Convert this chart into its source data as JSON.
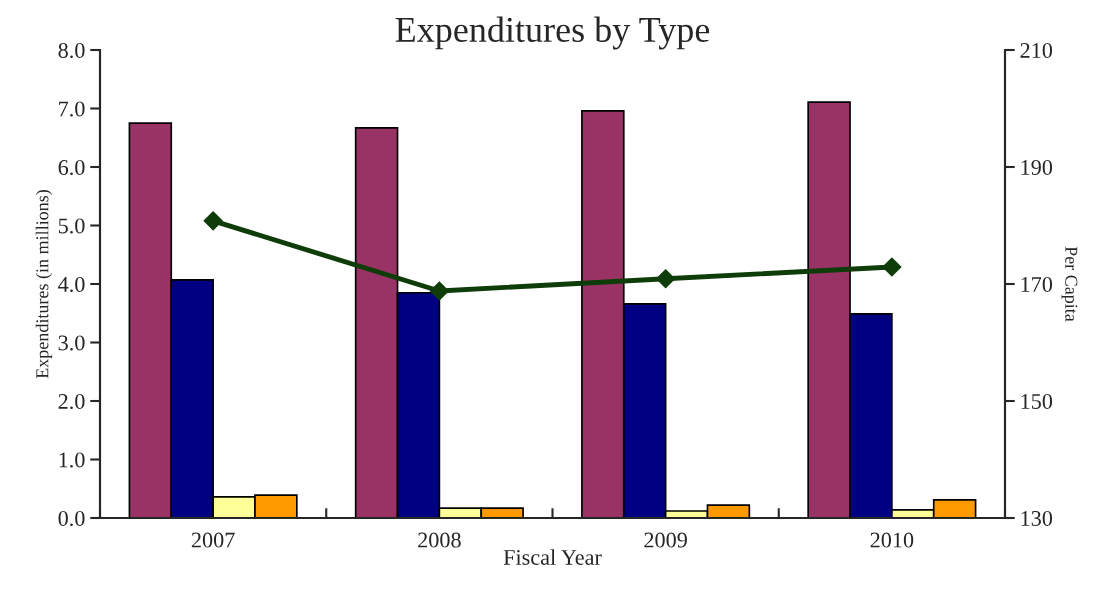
{
  "chart_data": {
    "type": "bar",
    "title": "Expenditures by Type",
    "xlabel": "Fiscal Year",
    "ylabel": "Expenditures (in millions)",
    "y2label": "Per Capita",
    "categories": [
      "2007",
      "2008",
      "2009",
      "2010"
    ],
    "series": [
      {
        "color": "#993366",
        "values": [
          6.75,
          6.67,
          6.96,
          7.11
        ]
      },
      {
        "color": "#000080",
        "values": [
          4.07,
          3.85,
          3.66,
          3.49
        ]
      },
      {
        "color": "#ffff99",
        "values": [
          0.36,
          0.17,
          0.12,
          0.14
        ]
      },
      {
        "color": "#ff9900",
        "values": [
          0.39,
          0.17,
          0.22,
          0.31
        ]
      },
      {
        "type": "line",
        "axis": "y2",
        "color": "#0f3d0a",
        "marker": "diamond",
        "values": [
          180.8,
          168.8,
          170.9,
          172.9
        ]
      }
    ],
    "ylim": [
      0,
      8
    ],
    "yticks": [
      {
        "value": 0,
        "label": "0.0"
      },
      {
        "value": 1,
        "label": "1.0"
      },
      {
        "value": 2,
        "label": "2.0"
      },
      {
        "value": 3,
        "label": "3.0"
      },
      {
        "value": 4,
        "label": "4.0"
      },
      {
        "value": 5,
        "label": "5.0"
      },
      {
        "value": 6,
        "label": "6.0"
      },
      {
        "value": 7,
        "label": "7.0"
      },
      {
        "value": 8,
        "label": "8.0"
      }
    ],
    "y2lim": [
      130,
      210
    ],
    "y2ticks": [
      130,
      150,
      170,
      190,
      210
    ],
    "grid": false,
    "legend": false
  }
}
